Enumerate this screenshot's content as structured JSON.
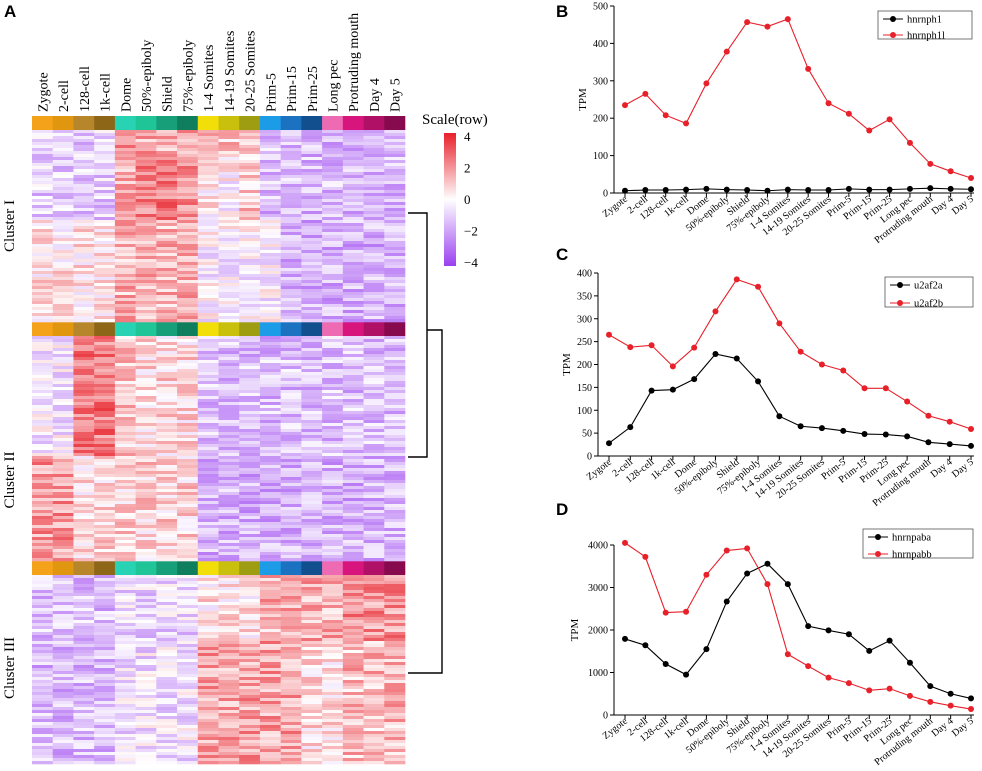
{
  "panels": {
    "A": "A",
    "B": "B",
    "C": "C",
    "D": "D"
  },
  "stages": [
    "Zygote",
    "2-cell",
    "128-cell",
    "1k-cell",
    "Dome",
    "50%-epiboly",
    "Shield",
    "75%-epiboly",
    "1-4 Somites",
    "14-19 Somites",
    "20-25 Somites",
    "Prim-5",
    "Prim-15",
    "Prim-25",
    "Long pec",
    "Protruding mouth",
    "Day 4",
    "Day 5"
  ],
  "colors": {
    "stage_colors": [
      "#f5a21b",
      "#e0960f",
      "#b8862a",
      "#8e6618",
      "#27d3b2",
      "#1fc597",
      "#169f78",
      "#0f7e5c",
      "#f2df0a",
      "#c8c00c",
      "#9e9d12",
      "#1c9ce6",
      "#1a72c0",
      "#114f8e",
      "#ee6bb4",
      "#d8157c",
      "#b01066",
      "#860a4d"
    ],
    "heat_high": "#e8202a",
    "heat_mid": "#ffffff",
    "heat_low": "#9a3ff0",
    "series_black": "#000000",
    "series_red": "#e8202a"
  },
  "heatmap": {
    "clusters": [
      "Cluster I",
      "Cluster II",
      "Cluster III"
    ],
    "legend_title": "Scale(row)",
    "legend_ticks": [
      "4",
      "2",
      "0",
      "−2",
      "−4"
    ]
  },
  "chart_data": [
    {
      "panel": "B",
      "type": "line",
      "categories": [
        "Zygote",
        "2-cell",
        "128-cell",
        "1k-cell",
        "Dome",
        "50%-epiboly",
        "Shield",
        "75%-epiboly",
        "1-4 Somites",
        "14-19 Somites",
        "20-25 Somites",
        "Prim-5",
        "Prim-15",
        "Prim-25",
        "Long pec",
        "Protruding mouth",
        "Day 4",
        "Day 5"
      ],
      "ylabel": "TPM",
      "ylim": [
        0,
        500
      ],
      "yticks": [
        0,
        100,
        200,
        300,
        400,
        500
      ],
      "legend": "top-right",
      "series": [
        {
          "name": "hnrnph1",
          "color": "#000000",
          "values": [
            6,
            8,
            8,
            9,
            11,
            9,
            8,
            6,
            9,
            8,
            8,
            11,
            9,
            9,
            11,
            13,
            11,
            10
          ]
        },
        {
          "name": "hnrnph1l",
          "color": "#e8202a",
          "values": [
            235,
            265,
            208,
            186,
            293,
            378,
            457,
            445,
            465,
            332,
            240,
            212,
            167,
            197,
            134,
            78,
            58,
            40
          ]
        }
      ]
    },
    {
      "panel": "C",
      "type": "line",
      "categories": [
        "Zygote",
        "2-cell",
        "128-cell",
        "1k-cell",
        "Dome",
        "50%-epiboly",
        "Shield",
        "75%-epiboly",
        "1-4 Somites",
        "14-19 Somites",
        "20-25 Somites",
        "Prim-5",
        "Prim-15",
        "Prim-25",
        "Long pec",
        "Protruding mouth",
        "Day 4",
        "Day 5"
      ],
      "ylabel": "TPM",
      "ylim": [
        0,
        400
      ],
      "yticks": [
        0,
        50,
        100,
        150,
        200,
        250,
        300,
        350,
        400
      ],
      "legend": "top-right",
      "series": [
        {
          "name": "u2af2a",
          "color": "#000000",
          "values": [
            28,
            63,
            143,
            145,
            168,
            223,
            213,
            163,
            87,
            65,
            61,
            55,
            48,
            47,
            43,
            30,
            26,
            22
          ]
        },
        {
          "name": "u2af2b",
          "color": "#e8202a",
          "values": [
            265,
            238,
            242,
            196,
            237,
            316,
            386,
            370,
            290,
            228,
            200,
            187,
            148,
            148,
            119,
            88,
            75,
            59
          ]
        }
      ]
    },
    {
      "panel": "D",
      "type": "line",
      "categories": [
        "Zygote",
        "2-cell",
        "128-cell",
        "1k-cell",
        "Dome",
        "50%-epiboly",
        "Shield",
        "75%-epiboly",
        "1-4 Somites",
        "14-19 Somites",
        "20-25 Somites",
        "Prim-5",
        "Prim-15",
        "Prim-25",
        "Long pec",
        "Protruding mouth",
        "Day 4",
        "Day 5"
      ],
      "ylabel": "TPM",
      "ylim": [
        0,
        4000
      ],
      "yticks": [
        0,
        1000,
        2000,
        3000,
        4000
      ],
      "legend": "top-right",
      "series": [
        {
          "name": "hnrnpaba",
          "color": "#000000",
          "values": [
            1790,
            1640,
            1200,
            950,
            1550,
            2670,
            3330,
            3560,
            3080,
            2090,
            1990,
            1900,
            1510,
            1750,
            1230,
            680,
            500,
            390
          ]
        },
        {
          "name": "hnrnpabb",
          "color": "#e8202a",
          "values": [
            4050,
            3720,
            2410,
            2430,
            3300,
            3870,
            3920,
            3080,
            1430,
            1150,
            880,
            750,
            580,
            620,
            450,
            310,
            220,
            140
          ]
        }
      ]
    }
  ]
}
